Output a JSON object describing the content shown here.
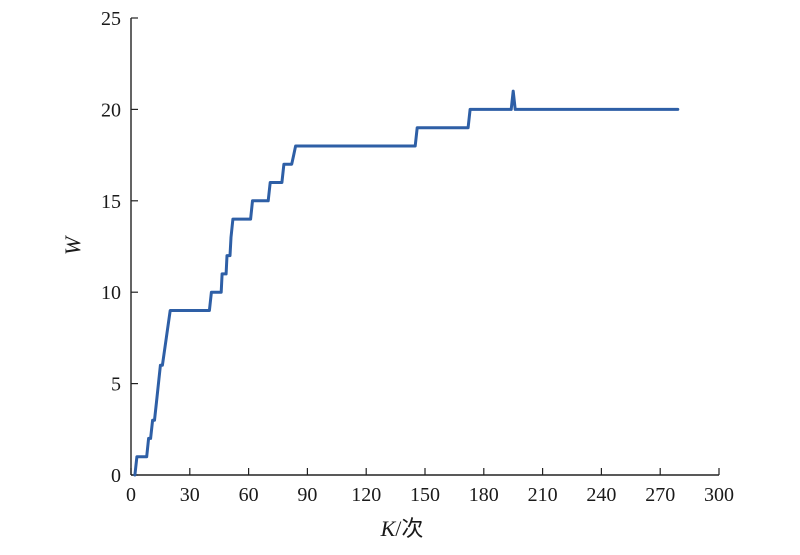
{
  "chart_data": {
    "type": "line",
    "title": "",
    "xlabel": "K/次",
    "xlabel_italic_part": "K",
    "xlabel_rest": "/次",
    "ylabel": "W",
    "xlim": [
      0,
      300
    ],
    "ylim": [
      0,
      25
    ],
    "x_ticks": [
      0,
      30,
      60,
      90,
      120,
      150,
      180,
      210,
      240,
      270,
      300
    ],
    "y_ticks": [
      0,
      5,
      10,
      15,
      20,
      25
    ],
    "grid": false,
    "legend": "none",
    "series": [
      {
        "color": "#2e5fa6",
        "x": [
          2,
          3,
          8,
          9,
          10,
          11,
          12,
          13,
          15,
          16,
          18,
          20,
          40,
          41,
          46,
          46.5,
          48.5,
          49,
          50.5,
          51,
          52,
          53,
          61,
          62,
          70,
          71,
          77,
          78,
          82,
          83,
          84,
          145,
          146,
          172,
          173,
          194,
          195,
          196,
          279
        ],
        "y": [
          0,
          1,
          1,
          2,
          2,
          3,
          3,
          4,
          6,
          6,
          7.5,
          9,
          9,
          10,
          10,
          11,
          11,
          12,
          12,
          13,
          14,
          14,
          14,
          15,
          15,
          16,
          16,
          17,
          17,
          17.5,
          18,
          18,
          19,
          19,
          20,
          20,
          21,
          20,
          20
        ]
      }
    ]
  }
}
